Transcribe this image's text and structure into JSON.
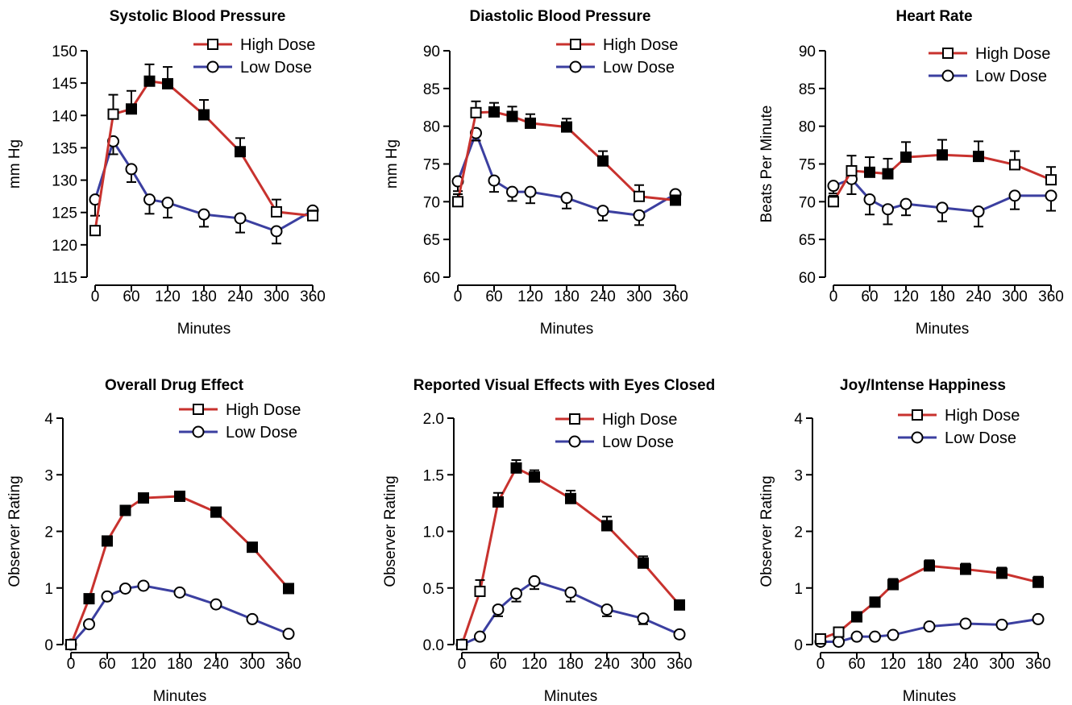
{
  "colors": {
    "high": "#c8322e",
    "low": "#3b3fa0",
    "axis": "#000000"
  },
  "chart_data": [
    {
      "type": "line",
      "title": "Systolic Blood Pressure",
      "ylabel": "mm Hg",
      "xlabel": "Minutes",
      "ylim": [
        115,
        150
      ],
      "yticks": [
        115,
        120,
        125,
        130,
        135,
        140,
        145,
        150
      ],
      "ytick_labels": [
        "115",
        "120",
        "125",
        "130",
        "135",
        "140",
        "145",
        "150"
      ],
      "xlim": [
        0,
        360
      ],
      "xticks": [
        0,
        60,
        120,
        180,
        240,
        300,
        360
      ],
      "xtick_labels": [
        "0",
        "60",
        "120",
        "180",
        "240",
        "300",
        "360"
      ],
      "legend_position": "top-right",
      "series": [
        {
          "name": "High Dose",
          "marker": "square",
          "x": [
            0,
            30,
            60,
            90,
            120,
            180,
            240,
            300,
            360
          ],
          "y": [
            122.2,
            140.2,
            141.0,
            145.3,
            144.9,
            140.1,
            134.4,
            125.1,
            124.5
          ],
          "err": [
            0,
            3.0,
            2.8,
            2.6,
            2.6,
            2.3,
            2.1,
            1.9,
            0.8
          ],
          "filled": [
            false,
            false,
            true,
            true,
            true,
            true,
            true,
            false,
            false
          ]
        },
        {
          "name": "Low Dose",
          "marker": "circle",
          "x": [
            0,
            30,
            60,
            90,
            120,
            180,
            240,
            300,
            360
          ],
          "y": [
            127.0,
            136.0,
            131.7,
            127.0,
            126.5,
            124.7,
            124.1,
            122.1,
            125.3
          ],
          "err": [
            2.5,
            2.0,
            2.0,
            2.2,
            2.3,
            1.9,
            2.2,
            1.9,
            1.1
          ]
        }
      ]
    },
    {
      "type": "line",
      "title": "Diastolic Blood Pressure",
      "ylabel": "mm Hg",
      "xlabel": "Minutes",
      "ylim": [
        60,
        90
      ],
      "yticks": [
        60,
        65,
        70,
        75,
        80,
        85,
        90
      ],
      "ytick_labels": [
        "60",
        "65",
        "70",
        "75",
        "80",
        "85",
        "90"
      ],
      "xlim": [
        0,
        360
      ],
      "xticks": [
        0,
        60,
        120,
        180,
        240,
        300,
        360
      ],
      "xtick_labels": [
        "0",
        "60",
        "120",
        "180",
        "240",
        "300",
        "360"
      ],
      "legend_position": "top-right",
      "series": [
        {
          "name": "High Dose",
          "marker": "square",
          "x": [
            0,
            30,
            60,
            90,
            120,
            180,
            240,
            300,
            360
          ],
          "y": [
            70.0,
            81.8,
            81.9,
            81.3,
            80.4,
            79.9,
            75.4,
            70.7,
            70.2
          ],
          "err": [
            1.0,
            1.5,
            1.2,
            1.3,
            1.2,
            1.1,
            1.3,
            1.5,
            0.5
          ],
          "filled": [
            false,
            false,
            true,
            true,
            true,
            true,
            true,
            false,
            true
          ]
        },
        {
          "name": "Low Dose",
          "marker": "circle",
          "x": [
            0,
            30,
            60,
            90,
            120,
            180,
            240,
            300,
            360
          ],
          "y": [
            72.7,
            79.1,
            72.8,
            71.3,
            71.3,
            70.5,
            68.8,
            68.2,
            71.0
          ],
          "err": [
            1.3,
            1.0,
            1.5,
            1.2,
            1.5,
            1.4,
            1.3,
            1.3,
            0.5
          ]
        }
      ]
    },
    {
      "type": "line",
      "title": "Heart Rate",
      "ylabel": "Beats Per Minute",
      "xlabel": "Minutes",
      "ylim": [
        60,
        90
      ],
      "yticks": [
        60,
        65,
        70,
        75,
        80,
        85,
        90
      ],
      "ytick_labels": [
        "60",
        "65",
        "70",
        "75",
        "80",
        "85",
        "90"
      ],
      "xlim": [
        0,
        360
      ],
      "xticks": [
        0,
        60,
        120,
        180,
        240,
        300,
        360
      ],
      "xtick_labels": [
        "0",
        "60",
        "120",
        "180",
        "240",
        "300",
        "360"
      ],
      "legend_position": "top-right",
      "series": [
        {
          "name": "High Dose",
          "marker": "square",
          "x": [
            0,
            30,
            60,
            90,
            120,
            180,
            240,
            300,
            360
          ],
          "y": [
            70.0,
            74.1,
            73.9,
            73.7,
            75.9,
            76.2,
            76.0,
            74.9,
            72.9
          ],
          "err": [
            0.8,
            2.0,
            2.0,
            2.0,
            2.0,
            2.0,
            2.0,
            1.8,
            1.7
          ],
          "filled": [
            false,
            false,
            true,
            true,
            true,
            true,
            true,
            false,
            false
          ]
        },
        {
          "name": "Low Dose",
          "marker": "circle",
          "x": [
            0,
            30,
            60,
            90,
            120,
            180,
            240,
            300,
            360
          ],
          "y": [
            72.1,
            73.0,
            70.3,
            69.0,
            69.7,
            69.2,
            68.7,
            70.8,
            70.8
          ],
          "err": [
            1.0,
            2.0,
            2.0,
            2.0,
            1.5,
            1.8,
            2.0,
            1.8,
            2.0
          ]
        }
      ]
    },
    {
      "type": "line",
      "title": "Overall Drug Effect",
      "ylabel": "Observer Rating",
      "xlabel": "Minutes",
      "ylim": [
        0,
        4
      ],
      "yticks": [
        0,
        1,
        2,
        3,
        4
      ],
      "ytick_labels": [
        "0",
        "1",
        "2",
        "3",
        "4"
      ],
      "xlim": [
        0,
        360
      ],
      "xticks": [
        0,
        60,
        120,
        180,
        240,
        300,
        360
      ],
      "xtick_labels": [
        "0",
        "60",
        "120",
        "180",
        "240",
        "300",
        "360"
      ],
      "legend_position": "top-right",
      "series": [
        {
          "name": "High Dose",
          "marker": "square",
          "x": [
            0,
            30,
            60,
            90,
            120,
            180,
            240,
            300,
            360
          ],
          "y": [
            0.0,
            0.81,
            1.83,
            2.37,
            2.59,
            2.62,
            2.34,
            1.72,
            0.99
          ],
          "err": [
            0,
            0.05,
            0.05,
            0.05,
            0.05,
            0.05,
            0.05,
            0.05,
            0.05
          ],
          "filled": [
            false,
            true,
            true,
            true,
            true,
            true,
            true,
            true,
            true
          ]
        },
        {
          "name": "Low Dose",
          "marker": "circle",
          "x": [
            0,
            30,
            60,
            90,
            120,
            180,
            240,
            300,
            360
          ],
          "y": [
            0.0,
            0.36,
            0.85,
            0.99,
            1.04,
            0.92,
            0.71,
            0.45,
            0.19
          ],
          "err": [
            0,
            0.04,
            0.04,
            0.04,
            0.04,
            0.04,
            0.04,
            0.04,
            0.04
          ]
        }
      ]
    },
    {
      "type": "line",
      "title": "Reported Visual Effects with Eyes Closed",
      "ylabel": "Observer Rating",
      "xlabel": "Minutes",
      "ylim": [
        0,
        2
      ],
      "yticks": [
        0,
        0.5,
        1.0,
        1.5,
        2.0
      ],
      "ytick_labels": [
        "0.0",
        "0.5",
        "1.0",
        "1.5",
        "2.0"
      ],
      "xlim": [
        0,
        360
      ],
      "xticks": [
        0,
        60,
        120,
        180,
        240,
        300,
        360
      ],
      "xtick_labels": [
        "0",
        "60",
        "120",
        "180",
        "240",
        "300",
        "360"
      ],
      "legend_position": "top-right",
      "series": [
        {
          "name": "High Dose",
          "marker": "square",
          "x": [
            0,
            30,
            60,
            90,
            120,
            180,
            240,
            300,
            360
          ],
          "y": [
            0.0,
            0.47,
            1.26,
            1.56,
            1.48,
            1.29,
            1.05,
            0.72,
            0.35
          ],
          "err": [
            0,
            0.1,
            0.08,
            0.07,
            0.06,
            0.07,
            0.08,
            0.06,
            0.04
          ],
          "filled": [
            false,
            false,
            true,
            true,
            true,
            true,
            true,
            true,
            true
          ]
        },
        {
          "name": "Low Dose",
          "marker": "circle",
          "x": [
            0,
            30,
            60,
            90,
            120,
            180,
            240,
            300,
            360
          ],
          "y": [
            0.0,
            0.07,
            0.31,
            0.45,
            0.56,
            0.46,
            0.31,
            0.23,
            0.09
          ],
          "err": [
            0,
            0.03,
            0.06,
            0.07,
            0.07,
            0.08,
            0.06,
            0.05,
            0.03
          ]
        }
      ]
    },
    {
      "type": "line",
      "title": "Joy/Intense Happiness",
      "ylabel": "Observer Rating",
      "xlabel": "Minutes",
      "ylim": [
        0,
        4
      ],
      "yticks": [
        0,
        1,
        2,
        3,
        4
      ],
      "ytick_labels": [
        "0",
        "1",
        "2",
        "3",
        "4"
      ],
      "xlim": [
        0,
        360
      ],
      "xticks": [
        0,
        60,
        120,
        180,
        240,
        300,
        360
      ],
      "xtick_labels": [
        "0",
        "60",
        "120",
        "180",
        "240",
        "300",
        "360"
      ],
      "legend_position": "top-right",
      "series": [
        {
          "name": "High Dose",
          "marker": "square",
          "x": [
            0,
            30,
            60,
            90,
            120,
            180,
            240,
            300,
            360
          ],
          "y": [
            0.1,
            0.22,
            0.49,
            0.75,
            1.06,
            1.39,
            1.33,
            1.26,
            1.1
          ],
          "err": [
            0,
            0.05,
            0.06,
            0.08,
            0.1,
            0.1,
            0.1,
            0.1,
            0.1
          ],
          "filled": [
            false,
            false,
            true,
            true,
            true,
            true,
            true,
            true,
            true
          ]
        },
        {
          "name": "Low Dose",
          "marker": "circle",
          "x": [
            0,
            30,
            60,
            90,
            120,
            180,
            240,
            300,
            360
          ],
          "y": [
            0.05,
            0.05,
            0.14,
            0.14,
            0.17,
            0.32,
            0.37,
            0.35,
            0.45
          ],
          "err": [
            0,
            0.02,
            0.03,
            0.03,
            0.04,
            0.05,
            0.05,
            0.05,
            0.06
          ]
        }
      ]
    }
  ]
}
